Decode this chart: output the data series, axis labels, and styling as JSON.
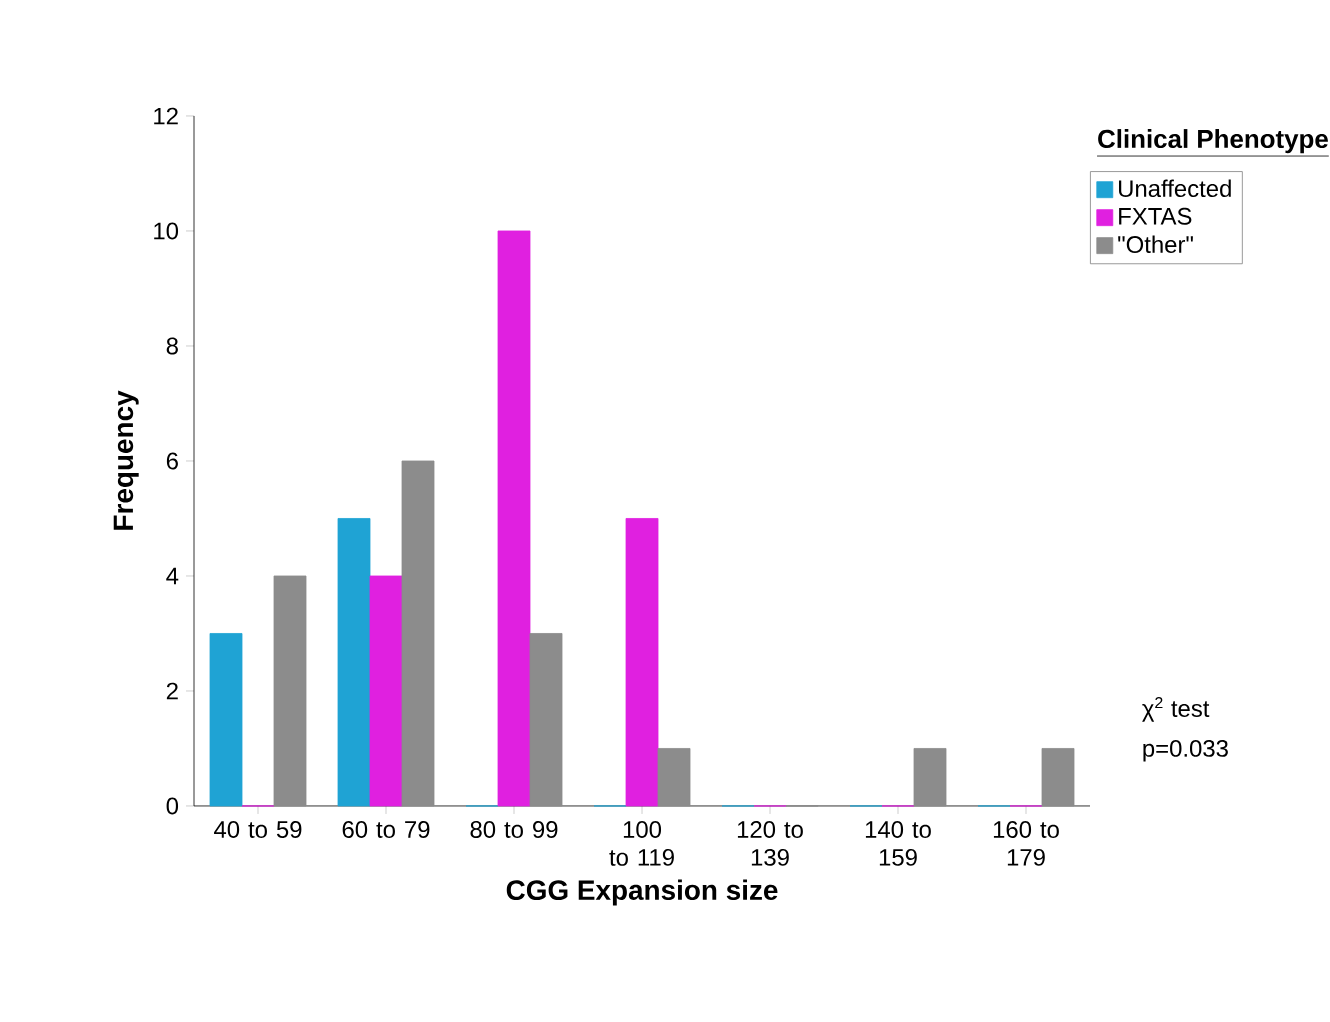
{
  "chart_data": {
    "type": "bar",
    "xlabel": "CGG Expansion size",
    "ylabel": "Frequency",
    "legend_title": "Clinical Phenotype",
    "categories": [
      "40 to 59",
      "60 to 79",
      "80 to 99",
      "100 to 119",
      "120 to 139",
      "140 to 159",
      "160 to 179"
    ],
    "series": [
      {
        "name": "Unaffected",
        "color": "#1fa3d4",
        "values": [
          3,
          5,
          0,
          0,
          0,
          0,
          0
        ]
      },
      {
        "name": "FXTAS",
        "color": "#e020e0",
        "values": [
          0,
          4,
          10,
          5,
          0,
          0,
          0
        ]
      },
      {
        "name": "\"Other\"",
        "color": "#8c8c8c",
        "values": [
          4,
          6,
          3,
          1,
          0,
          1,
          1
        ]
      }
    ],
    "ylim": [
      0,
      12
    ],
    "yticks": [
      0,
      2,
      4,
      6,
      8,
      10,
      12
    ],
    "grid": false,
    "legend": "top right",
    "annotations": [
      "χ$^{2}$ test",
      "p=0.033"
    ]
  }
}
